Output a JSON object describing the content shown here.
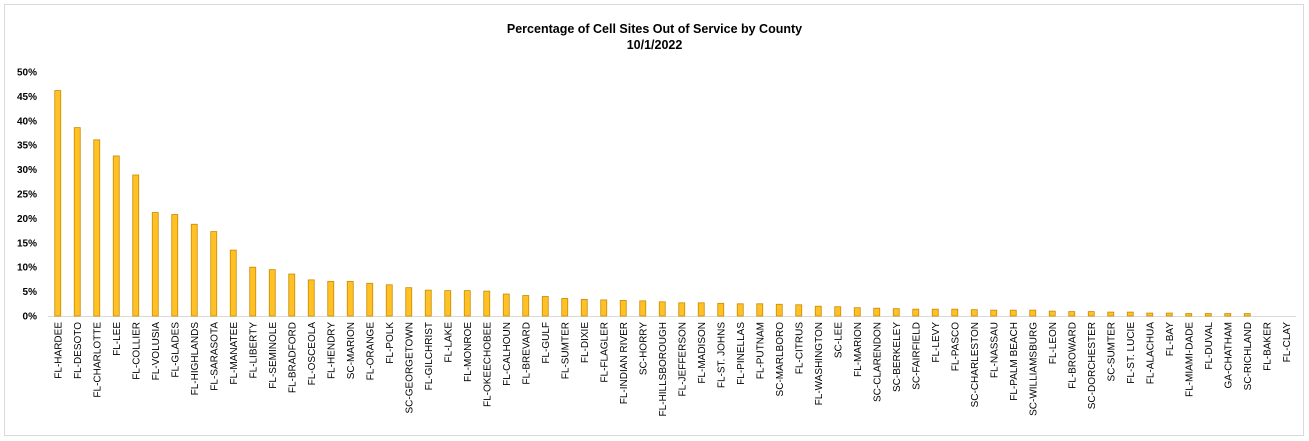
{
  "chart_data": {
    "type": "bar",
    "title": "Percentage of Cell Sites Out of Service by County",
    "subtitle": "10/1/2022",
    "xlabel": "",
    "ylabel": "",
    "ylim": [
      0,
      0.5
    ],
    "yticks": [
      "0%",
      "5%",
      "10%",
      "15%",
      "20%",
      "25%",
      "30%",
      "35%",
      "40%",
      "45%",
      "50%"
    ],
    "grid": false,
    "legend": "none",
    "bar_color": "#FFC125",
    "bar_edge": "#C98A00",
    "categories": [
      "FL-HARDEE",
      "FL-DESOTO",
      "FL-CHARLOTTE",
      "FL-LEE",
      "FL-COLLIER",
      "FL-VOLUSIA",
      "FL-GLADES",
      "FL-HIGHLANDS",
      "FL-SARASOTA",
      "FL-MANATEE",
      "FL-LIBERTY",
      "FL-SEMINOLE",
      "FL-BRADFORD",
      "FL-OSCEOLA",
      "FL-HENDRY",
      "SC-MARION",
      "FL-ORANGE",
      "FL-POLK",
      "SC-GEORGETOWN",
      "FL-GILCHRIST",
      "FL-LAKE",
      "FL-MONROE",
      "FL-OKEECHOBEE",
      "FL-CALHOUN",
      "FL-BREVARD",
      "FL-GULF",
      "FL-SUMTER",
      "FL-DIXIE",
      "FL-FLAGLER",
      "FL-INDIAN RIVER",
      "SC-HORRY",
      "FL-HILLSBOROUGH",
      "FL-JEFFERSON",
      "FL-MADISON",
      "FL-ST. JOHNS",
      "FL-PINELLAS",
      "FL-PUTNAM",
      "SC-MARLBORO",
      "FL-CITRUS",
      "FL-WASHINGTON",
      "SC-LEE",
      "FL-MARION",
      "SC-CLARENDON",
      "SC-BERKELEY",
      "SC-FAIRFIELD",
      "FL-LEVY",
      "FL-PASCO",
      "SC-CHARLESTON",
      "FL-NASSAU",
      "FL-PALM BEACH",
      "SC-WILLIAMSBURG",
      "FL-LEON",
      "FL-BROWARD",
      "SC-DORCHESTER",
      "SC-SUMTER",
      "FL-ST. LUCIE",
      "FL-ALACHUA",
      "FL-BAY",
      "FL-MIAMI-DADE",
      "FL-DUVAL",
      "GA-CHATHAM",
      "SC-RICHLAND",
      "FL-BAKER",
      "FL-CLAY"
    ],
    "values": [
      0.462,
      0.386,
      0.361,
      0.328,
      0.289,
      0.212,
      0.208,
      0.188,
      0.173,
      0.135,
      0.1,
      0.095,
      0.086,
      0.074,
      0.071,
      0.071,
      0.067,
      0.064,
      0.058,
      0.053,
      0.052,
      0.052,
      0.051,
      0.045,
      0.042,
      0.04,
      0.036,
      0.034,
      0.033,
      0.032,
      0.031,
      0.029,
      0.027,
      0.027,
      0.026,
      0.025,
      0.025,
      0.024,
      0.023,
      0.02,
      0.019,
      0.017,
      0.016,
      0.015,
      0.014,
      0.014,
      0.014,
      0.013,
      0.012,
      0.012,
      0.012,
      0.01,
      0.009,
      0.009,
      0.008,
      0.008,
      0.006,
      0.006,
      0.005,
      0.005,
      0.005,
      0.005,
      0.0,
      0.0
    ]
  }
}
